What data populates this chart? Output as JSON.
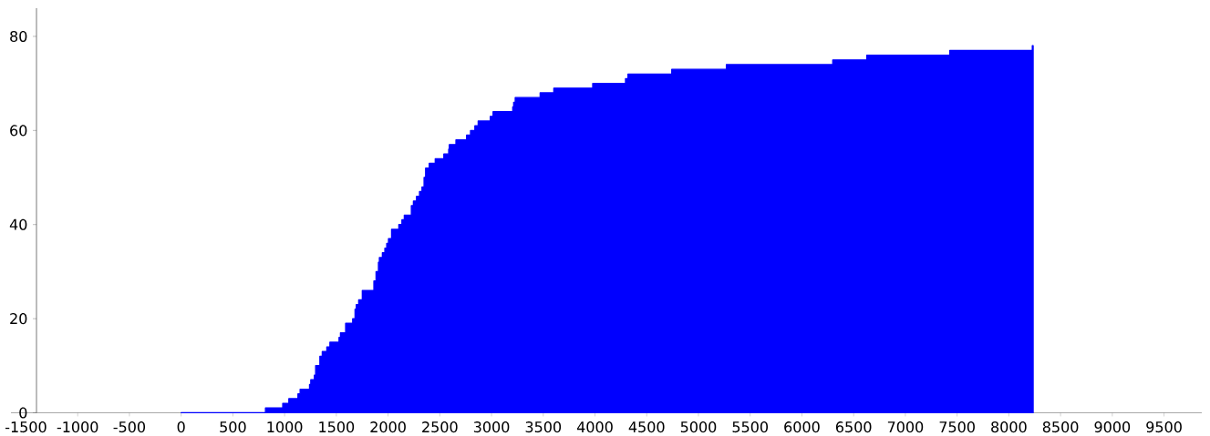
{
  "chart_data": {
    "type": "area",
    "color": "#0000ff",
    "x": [
      0,
      815,
      815,
      982,
      982,
      1041,
      1041,
      1129,
      1129,
      1150,
      1150,
      1241,
      1241,
      1253,
      1253,
      1288,
      1288,
      1300,
      1300,
      1341,
      1341,
      1364,
      1364,
      1408,
      1408,
      1438,
      1438,
      1526,
      1526,
      1540,
      1540,
      1590,
      1590,
      1658,
      1658,
      1681,
      1681,
      1693,
      1693,
      1716,
      1716,
      1751,
      1751,
      1863,
      1863,
      1884,
      1884,
      1907,
      1907,
      1916,
      1916,
      1945,
      1945,
      1969,
      1969,
      1987,
      1987,
      2004,
      2004,
      2034,
      2034,
      2104,
      2104,
      2134,
      2134,
      2157,
      2157,
      2225,
      2225,
      2245,
      2245,
      2275,
      2275,
      2304,
      2304,
      2328,
      2328,
      2348,
      2348,
      2363,
      2363,
      2398,
      2398,
      2456,
      2456,
      2539,
      2539,
      2586,
      2586,
      2592,
      2592,
      2656,
      2656,
      2759,
      2759,
      2797,
      2797,
      2839,
      2839,
      2871,
      2871,
      2988,
      2988,
      3015,
      3015,
      3205,
      3205,
      3214,
      3214,
      3229,
      3229,
      3470,
      3470,
      3602,
      3602,
      3978,
      3978,
      4295,
      4295,
      4319,
      4319,
      4742,
      4742,
      5270,
      5270,
      6298,
      6298,
      6627,
      6627,
      7429,
      7429,
      8227,
      8227,
      8235
    ],
    "values": [
      0,
      0,
      1,
      1,
      2,
      2,
      3,
      3,
      4,
      4,
      5,
      5,
      6,
      6,
      7,
      7,
      8,
      8,
      10,
      10,
      12,
      12,
      13,
      13,
      14,
      14,
      15,
      15,
      16,
      16,
      17,
      17,
      19,
      19,
      20,
      20,
      22,
      22,
      23,
      23,
      24,
      24,
      26,
      26,
      28,
      28,
      30,
      30,
      32,
      32,
      33,
      33,
      34,
      34,
      35,
      35,
      36,
      36,
      37,
      37,
      39,
      39,
      40,
      40,
      41,
      41,
      42,
      42,
      44,
      44,
      45,
      45,
      46,
      46,
      47,
      47,
      48,
      48,
      50,
      50,
      52,
      52,
      53,
      53,
      54,
      54,
      55,
      55,
      56,
      56,
      57,
      57,
      58,
      58,
      59,
      59,
      60,
      60,
      61,
      61,
      62,
      62,
      63,
      63,
      64,
      64,
      65,
      65,
      66,
      66,
      67,
      67,
      68,
      68,
      69,
      69,
      70,
      70,
      71,
      71,
      72,
      72,
      73,
      73,
      74,
      74,
      75,
      75,
      76,
      76,
      77,
      77,
      78,
      78
    ],
    "xlim": [
      -1645,
      9865
    ],
    "ylim": [
      0,
      86
    ],
    "xticks": [
      -1500,
      -1000,
      -500,
      0,
      500,
      1000,
      1500,
      2000,
      2500,
      3000,
      3500,
      4000,
      4500,
      5000,
      5500,
      6000,
      6500,
      7000,
      7500,
      8000,
      8500,
      9000,
      9500
    ],
    "yticks": [
      0,
      20,
      40,
      60,
      80
    ]
  }
}
